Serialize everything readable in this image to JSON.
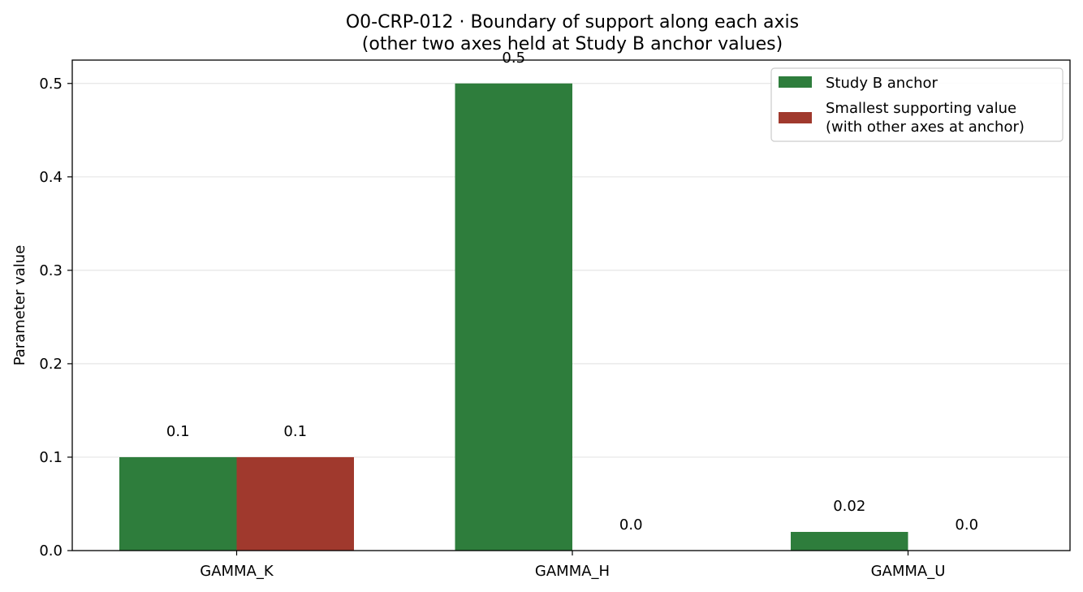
{
  "chart_data": {
    "type": "bar",
    "title": "O0-CRP-012 · Boundary of support along each axis",
    "subtitle": "(other two axes held at Study B anchor values)",
    "xlabel": "",
    "ylabel": "Parameter value",
    "ylim": [
      0,
      0.525
    ],
    "yticks": [
      0.0,
      0.1,
      0.2,
      0.3,
      0.4,
      0.5
    ],
    "ytick_labels": [
      "0.0",
      "0.1",
      "0.2",
      "0.3",
      "0.4",
      "0.5"
    ],
    "grid": "y",
    "legend_position": "top-right",
    "categories": [
      "GAMMA_K",
      "GAMMA_H",
      "GAMMA_U"
    ],
    "series": [
      {
        "name": "Study B anchor",
        "color": "#2e7d3c",
        "values": [
          0.1,
          0.5,
          0.02
        ],
        "value_labels": [
          "0.1",
          "0.5",
          "0.02"
        ]
      },
      {
        "name": "Smallest supporting value\n(with other axes at anchor)",
        "name_lines": [
          "Smallest supporting value",
          "(with other axes at anchor)"
        ],
        "color": "#a0392d",
        "values": [
          0.1,
          0.0,
          0.0
        ],
        "value_labels": [
          "0.1",
          "0.0",
          "0.0"
        ]
      }
    ]
  }
}
